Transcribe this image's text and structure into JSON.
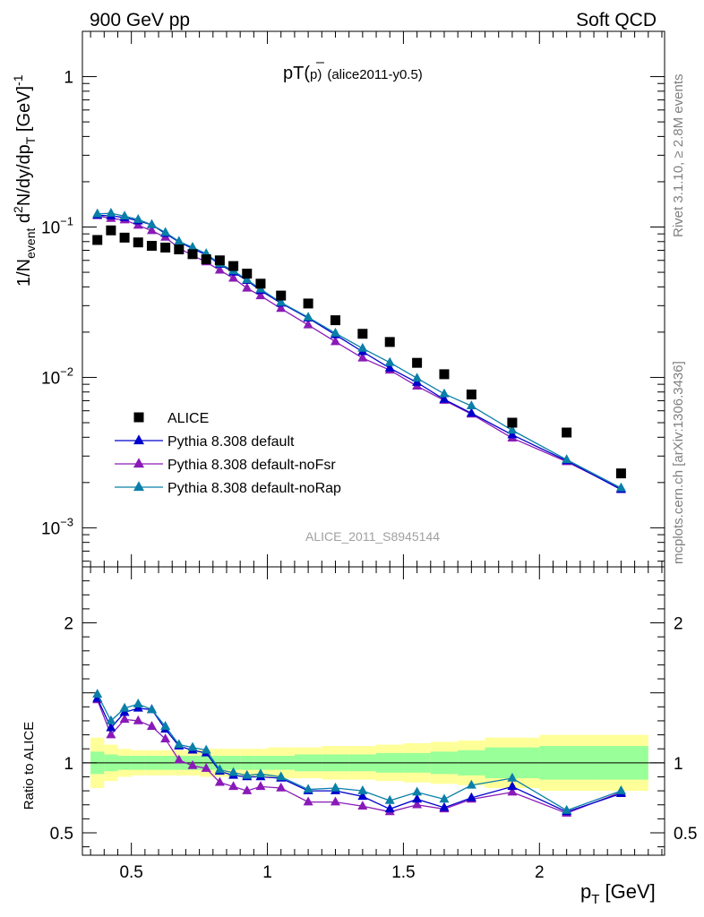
{
  "header": {
    "left": "900 GeV pp",
    "right": "Soft QCD"
  },
  "side": {
    "rivet": "Rivet 3.1.10, ≥ 2.8M events",
    "mcplots": "mcplots.cern.ch [arXiv:1306.3436]"
  },
  "chart_data": {
    "type": "scatter",
    "title": "pT(p̄) (alice2011-y0.5)",
    "title_main": "pT(",
    "title_sym": "p",
    "title_close": ")",
    "title_tail": "(alice2011-y0.5)",
    "ylabel": "1/N_event d²N/dy/dp_T [GeV]⁻¹",
    "ylabel_parts": {
      "a": "1/N",
      "b": "event",
      "c": " d",
      "d": "2",
      "e": "N/dy/dp",
      "f": "T",
      "g": " [GeV]",
      "h": "-1"
    },
    "xlabel": "p_T [GeV]",
    "xlabel_parts": {
      "a": "p",
      "b": "T",
      "c": " [GeV]"
    },
    "ratio_ylabel": "Ratio to ALICE",
    "watermark": "ALICE_2011_S8945144",
    "y_scale": "log",
    "ylim": [
      0.00055,
      2.0
    ],
    "xlim": [
      0.32,
      2.46
    ],
    "ratio_ylim": [
      0.34,
      2.4
    ],
    "x_ticks": [
      {
        "v": 0.5,
        "label": "0.5"
      },
      {
        "v": 1,
        "label": "1"
      },
      {
        "v": 1.5,
        "label": "1.5"
      },
      {
        "v": 2,
        "label": "2"
      }
    ],
    "y_ticks": [
      {
        "v": 1,
        "base": "1",
        "exp": ""
      },
      {
        "v": 0.1,
        "base": "10",
        "exp": "−1"
      },
      {
        "v": 0.01,
        "base": "10",
        "exp": "−2"
      },
      {
        "v": 0.001,
        "base": "10",
        "exp": "−3"
      }
    ],
    "ratio_ticks": [
      {
        "v": 2,
        "label": "2"
      },
      {
        "v": 1,
        "label": "1"
      },
      {
        "v": 0.5,
        "label": "0.5"
      }
    ],
    "legend_position": "bottom-left",
    "band_colors": {
      "inner": "#99ff99",
      "outer": "#ffff99"
    },
    "bins": [
      {
        "lo": 0.35,
        "hi": 0.4,
        "x": 0.375,
        "y": 0.082,
        "e1": 0.08,
        "e2": 0.18
      },
      {
        "lo": 0.4,
        "hi": 0.45,
        "x": 0.425,
        "y": 0.095,
        "e1": 0.06,
        "e2": 0.13
      },
      {
        "lo": 0.45,
        "hi": 0.5,
        "x": 0.475,
        "y": 0.085,
        "e1": 0.05,
        "e2": 0.1
      },
      {
        "lo": 0.5,
        "hi": 0.55,
        "x": 0.525,
        "y": 0.079,
        "e1": 0.05,
        "e2": 0.09
      },
      {
        "lo": 0.55,
        "hi": 0.6,
        "x": 0.575,
        "y": 0.075,
        "e1": 0.05,
        "e2": 0.09
      },
      {
        "lo": 0.6,
        "hi": 0.65,
        "x": 0.625,
        "y": 0.073,
        "e1": 0.05,
        "e2": 0.09
      },
      {
        "lo": 0.65,
        "hi": 0.7,
        "x": 0.675,
        "y": 0.071,
        "e1": 0.05,
        "e2": 0.09
      },
      {
        "lo": 0.7,
        "hi": 0.75,
        "x": 0.725,
        "y": 0.066,
        "e1": 0.05,
        "e2": 0.09
      },
      {
        "lo": 0.75,
        "hi": 0.8,
        "x": 0.775,
        "y": 0.061,
        "e1": 0.05,
        "e2": 0.1
      },
      {
        "lo": 0.8,
        "hi": 0.85,
        "x": 0.825,
        "y": 0.06,
        "e1": 0.05,
        "e2": 0.1
      },
      {
        "lo": 0.85,
        "hi": 0.9,
        "x": 0.875,
        "y": 0.055,
        "e1": 0.05,
        "e2": 0.1
      },
      {
        "lo": 0.9,
        "hi": 0.95,
        "x": 0.925,
        "y": 0.049,
        "e1": 0.05,
        "e2": 0.1
      },
      {
        "lo": 0.95,
        "hi": 1.0,
        "x": 0.975,
        "y": 0.042,
        "e1": 0.05,
        "e2": 0.1
      },
      {
        "lo": 1.0,
        "hi": 1.1,
        "x": 1.05,
        "y": 0.035,
        "e1": 0.05,
        "e2": 0.11
      },
      {
        "lo": 1.1,
        "hi": 1.2,
        "x": 1.15,
        "y": 0.031,
        "e1": 0.06,
        "e2": 0.11
      },
      {
        "lo": 1.2,
        "hi": 1.3,
        "x": 1.25,
        "y": 0.024,
        "e1": 0.06,
        "e2": 0.12
      },
      {
        "lo": 1.3,
        "hi": 1.4,
        "x": 1.35,
        "y": 0.0195,
        "e1": 0.06,
        "e2": 0.12
      },
      {
        "lo": 1.4,
        "hi": 1.5,
        "x": 1.45,
        "y": 0.0172,
        "e1": 0.07,
        "e2": 0.13
      },
      {
        "lo": 1.5,
        "hi": 1.6,
        "x": 1.55,
        "y": 0.0125,
        "e1": 0.07,
        "e2": 0.14
      },
      {
        "lo": 1.6,
        "hi": 1.7,
        "x": 1.65,
        "y": 0.0105,
        "e1": 0.08,
        "e2": 0.15
      },
      {
        "lo": 1.7,
        "hi": 1.8,
        "x": 1.75,
        "y": 0.0077,
        "e1": 0.09,
        "e2": 0.16
      },
      {
        "lo": 1.8,
        "hi": 2.0,
        "x": 1.9,
        "y": 0.005,
        "e1": 0.11,
        "e2": 0.18
      },
      {
        "lo": 2.0,
        "hi": 2.2,
        "x": 2.1,
        "y": 0.0043,
        "e1": 0.12,
        "e2": 0.2
      },
      {
        "lo": 2.2,
        "hi": 2.4,
        "x": 2.3,
        "y": 0.0023,
        "e1": 0.12,
        "e2": 0.2
      }
    ],
    "series": [
      {
        "name": "ALICE",
        "kind": "data",
        "color": "#000000",
        "marker": "square"
      },
      {
        "name": "Pythia 8.308 default",
        "kind": "mc",
        "color": "#0000cc",
        "marker": "triangle",
        "ratio": [
          1.46,
          1.25,
          1.36,
          1.39,
          1.38,
          1.24,
          1.12,
          1.09,
          1.07,
          0.94,
          0.91,
          0.9,
          0.9,
          0.89,
          0.8,
          0.8,
          0.76,
          0.67,
          0.74,
          0.68,
          0.75,
          0.83,
          0.65,
          0.78
        ]
      },
      {
        "name": "Pythia 8.308 default-noFsr",
        "kind": "mc",
        "color": "#8a1ab8",
        "marker": "triangle",
        "ratio": [
          1.45,
          1.2,
          1.31,
          1.3,
          1.26,
          1.17,
          1.02,
          0.98,
          0.96,
          0.86,
          0.83,
          0.8,
          0.83,
          0.82,
          0.72,
          0.72,
          0.69,
          0.65,
          0.7,
          0.67,
          0.74,
          0.79,
          0.64,
          0.79
        ]
      },
      {
        "name": "Pythia 8.308 default-noRap",
        "kind": "mc",
        "color": "#0a7fa8",
        "marker": "triangle",
        "ratio": [
          1.49,
          1.3,
          1.39,
          1.42,
          1.38,
          1.26,
          1.13,
          1.11,
          1.09,
          0.95,
          0.93,
          0.91,
          0.92,
          0.9,
          0.81,
          0.82,
          0.8,
          0.73,
          0.79,
          0.74,
          0.84,
          0.89,
          0.66,
          0.8
        ]
      }
    ]
  }
}
